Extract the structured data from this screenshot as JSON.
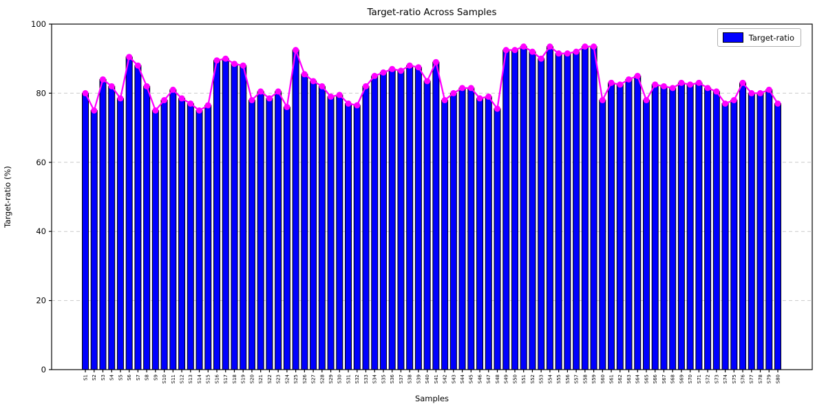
{
  "chart_data": {
    "type": "bar",
    "title": "Target-ratio Across Samples",
    "xlabel": "Samples",
    "ylabel": "Target-ratio (%)",
    "ylim": [
      0,
      100
    ],
    "yticks": [
      0,
      20,
      40,
      60,
      80,
      100
    ],
    "grid": "horizontal dashed gridlines at y ticks, drawn below bars",
    "legend": {
      "label": "Target-ratio",
      "position": "top-right"
    },
    "colors": {
      "bar_fill": "#0000ff",
      "bar_edge": "#000000",
      "line": "#ff00ff",
      "grid": "#c9c9c9",
      "axis": "#000000",
      "background": "#ffffff"
    },
    "categories": [
      "S1",
      "S2",
      "S3",
      "S4",
      "S5",
      "S6",
      "S7",
      "S8",
      "S9",
      "S10",
      "S11",
      "S12",
      "S13",
      "S14",
      "S15",
      "S16",
      "S17",
      "S18",
      "S19",
      "S20",
      "S21",
      "S22",
      "S23",
      "S24",
      "S25",
      "S26",
      "S27",
      "S28",
      "S29",
      "S30",
      "S31",
      "S32",
      "S33",
      "S34",
      "S35",
      "S36",
      "S37",
      "S38",
      "S39",
      "S40",
      "S41",
      "S42",
      "S43",
      "S44",
      "S45",
      "S46",
      "S47",
      "S48",
      "S49",
      "S50",
      "S51",
      "S52",
      "S53",
      "S54",
      "S55",
      "S56",
      "S57",
      "S58",
      "S59",
      "S60",
      "S61",
      "S62",
      "S63",
      "S64",
      "S65",
      "S66",
      "S67",
      "S68",
      "S69",
      "S70",
      "S71",
      "S72",
      "S73",
      "S74",
      "S75",
      "S76",
      "S77",
      "S78",
      "S79",
      "S80"
    ],
    "values": [
      80,
      75,
      84,
      82,
      78.5,
      90.5,
      88,
      82,
      75,
      78,
      81,
      78.5,
      77,
      75,
      76.5,
      89.5,
      90,
      88.5,
      88,
      78,
      80.5,
      78.5,
      80.5,
      76,
      92.5,
      85.5,
      83.5,
      82,
      79,
      79.5,
      77,
      76.5,
      82,
      85,
      86,
      87,
      86.5,
      88,
      87.5,
      83.5,
      89,
      78,
      80,
      81.5,
      81.5,
      78.5,
      79,
      75.5,
      92.5,
      92.5,
      93.5,
      92,
      90,
      93.5,
      91.5,
      91.5,
      92,
      93.5,
      93.5,
      78,
      83,
      82.5,
      84,
      85,
      78,
      82.5,
      82,
      81.5,
      83,
      82.5,
      83,
      81.5,
      80.5,
      77,
      78,
      83,
      80,
      80,
      81,
      77
    ],
    "overlay_line": {
      "marker": "circle",
      "marker_color": "#ff00ff",
      "passes_through": "bar tops"
    }
  }
}
